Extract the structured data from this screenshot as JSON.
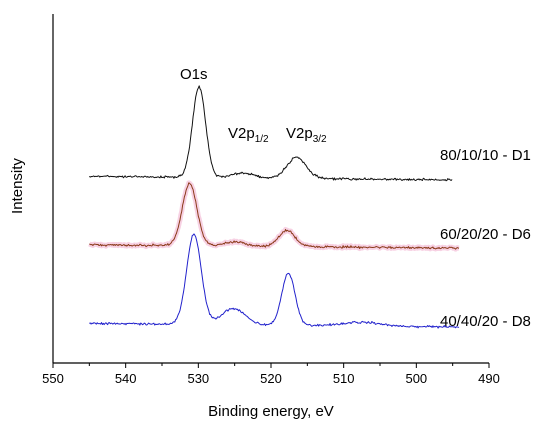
{
  "chart_data": {
    "type": "line",
    "xlabel": "Binding energy, eV",
    "ylabel": "Intensity",
    "xlim": [
      550,
      490
    ],
    "x_reversed": true,
    "x_ticks": [
      "550",
      "540",
      "530",
      "520",
      "510",
      "500",
      "490"
    ],
    "y_ticks_shown": false,
    "grid": false,
    "peak_annotations": [
      {
        "text": "O1s",
        "x": 529.8
      },
      {
        "text": "V2p",
        "sub": "1/2",
        "x": 523.5
      },
      {
        "text": "V2p",
        "sub": "3/2",
        "x": 517.0
      }
    ],
    "series": [
      {
        "name": "80/10/10 - D1",
        "color": "#111111",
        "x_range": [
          545,
          495
        ],
        "baseline": 0.4,
        "peaks": [
          {
            "center": 529.9,
            "height": 0.95,
            "width": 0.9
          },
          {
            "center": 523.8,
            "height": 0.05,
            "width": 1.5
          },
          {
            "center": 516.5,
            "height": 0.22,
            "width": 1.3
          }
        ]
      },
      {
        "name": "60/20/20 - D6",
        "color": "#8b3a1a",
        "glow": "#f5c6dc",
        "x_range": [
          545,
          494
        ],
        "baseline": 0.38,
        "peaks": [
          {
            "center": 531.2,
            "height": 0.78,
            "width": 1.0
          },
          {
            "center": 525.0,
            "height": 0.05,
            "width": 1.5
          },
          {
            "center": 517.8,
            "height": 0.2,
            "width": 1.1
          }
        ]
      },
      {
        "name": "40/40/20 - D8",
        "color": "#2222cc",
        "x_range": [
          545,
          494
        ],
        "baseline": 0.36,
        "peaks": [
          {
            "center": 530.6,
            "height": 0.95,
            "width": 1.0
          },
          {
            "center": 525.2,
            "height": 0.17,
            "width": 1.6
          },
          {
            "center": 517.6,
            "height": 0.55,
            "width": 0.9
          },
          {
            "center": 507.5,
            "height": 0.04,
            "width": 2.5
          }
        ]
      }
    ]
  }
}
